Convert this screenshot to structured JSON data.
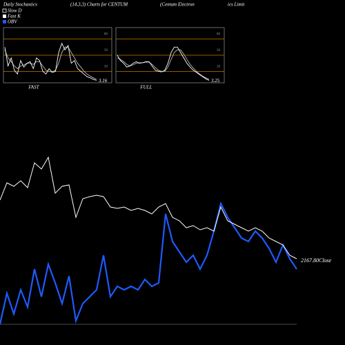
{
  "header": {
    "titles": [
      "Daily Stochastics",
      "(14,3,3) Charts for CENTUM",
      "(Centum Electron",
      "ics Limit"
    ]
  },
  "chart_data": [
    {
      "type": "line",
      "xlabel": "FAST",
      "ylim": [
        0,
        100
      ],
      "yticks": [
        20,
        50,
        80
      ],
      "grid_color": "#c87800",
      "series": [
        {
          "name": "Slow D",
          "color": "#bbbbbb",
          "values": [
            60,
            45,
            38,
            30,
            25,
            30,
            32,
            35,
            35,
            33,
            38,
            38,
            30,
            22,
            20,
            19,
            22,
            35,
            55,
            65,
            65,
            55,
            45,
            35,
            28,
            20,
            15,
            11,
            8,
            5
          ]
        },
        {
          "name": "Fast K",
          "color": "#ffffff",
          "values": [
            65,
            30,
            45,
            22,
            15,
            40,
            28,
            35,
            38,
            25,
            45,
            40,
            20,
            15,
            25,
            18,
            20,
            55,
            72,
            60,
            68,
            35,
            40,
            25,
            20,
            15,
            10,
            8,
            5,
            3.16
          ],
          "value_labels": [
            null,
            null,
            null,
            null,
            null,
            null,
            null,
            null,
            null,
            null,
            null,
            null,
            null,
            null,
            null,
            null,
            null,
            null,
            null,
            null,
            null,
            null,
            null,
            null,
            null,
            null,
            null,
            null,
            null,
            "3.16"
          ]
        }
      ]
    },
    {
      "type": "line",
      "xlabel": "FULL",
      "ylim": [
        0,
        100
      ],
      "yticks": [
        20,
        50,
        80
      ],
      "grid_color": "#c87800",
      "series": [
        {
          "name": "Slow D",
          "color": "#bbbbbb",
          "values": [
            45,
            42,
            38,
            33,
            30,
            32,
            35,
            36,
            36,
            37,
            37,
            33,
            27,
            22,
            20,
            20,
            28,
            42,
            55,
            60,
            60,
            52,
            42,
            33,
            26,
            20,
            15,
            11,
            8,
            5
          ]
        },
        {
          "name": "Fast K",
          "color": "#ffffff",
          "values": [
            50,
            40,
            35,
            28,
            30,
            35,
            38,
            35,
            36,
            38,
            38,
            30,
            22,
            20,
            19,
            22,
            35,
            55,
            65,
            65,
            55,
            45,
            35,
            28,
            22,
            18,
            14,
            10,
            6,
            3.25
          ],
          "value_labels": [
            null,
            null,
            null,
            null,
            null,
            null,
            null,
            null,
            null,
            null,
            null,
            null,
            null,
            null,
            null,
            null,
            null,
            null,
            null,
            null,
            null,
            null,
            null,
            null,
            null,
            null,
            null,
            null,
            null,
            "3.25"
          ]
        }
      ]
    },
    {
      "type": "line",
      "ylim": [
        1692.8,
        4042.8
      ],
      "y2lim": [
        0,
        470
      ],
      "series": [
        {
          "name": "OBV",
          "color": "#1e5bff",
          "axis": "y2",
          "values": [
            0,
            45,
            15,
            50,
            25,
            80,
            40,
            87,
            60,
            30,
            70,
            5,
            30,
            40,
            50,
            100,
            40,
            55,
            50,
            55,
            50,
            65,
            55,
            60,
            160,
            120,
            105,
            90,
            100,
            80,
            100,
            135,
            175,
            155,
            140,
            125,
            120,
            135,
            125,
            110,
            90,
            115,
            95,
            80
          ]
        },
        {
          "color": "#ffffff",
          "values": [
            2592.8,
            2717.8,
            2692.8,
            2732.8,
            2682.8,
            2862.8,
            2817.8,
            2902.8,
            2642.8,
            2692.8,
            2702.8,
            2467.8,
            2602.8,
            2617.8,
            2627.8,
            2617.8,
            2542.8,
            2532.8,
            2542.8,
            2517.8,
            2532.8,
            2517.8,
            2492.8,
            2542.8,
            2567.8,
            2467.8,
            2442.8,
            2392.8,
            2407.8,
            2377.8,
            2392.8,
            2367.8,
            2542.8,
            2442.8,
            2417.8,
            2392.8,
            2367.8,
            2392.8,
            2367.8,
            2317.8,
            2292.8,
            2267.8,
            2192.8,
            2167.8
          ],
          "value_labels": [
            null,
            null,
            null,
            null,
            null,
            null,
            null,
            null,
            null,
            null,
            null,
            null,
            null,
            null,
            null,
            null,
            null,
            null,
            null,
            null,
            null,
            null,
            null,
            null,
            null,
            null,
            null,
            null,
            null,
            null,
            null,
            null,
            null,
            null,
            null,
            null,
            null,
            null,
            null,
            null,
            null,
            null,
            null,
            "2167.80Close"
          ]
        }
      ]
    }
  ]
}
